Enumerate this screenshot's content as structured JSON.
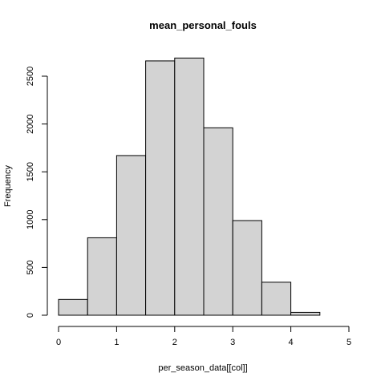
{
  "chart_data": {
    "type": "bar",
    "title": "mean_personal_fouls",
    "xlabel": "per_season_data[[col]]",
    "ylabel": "Frequency",
    "bins": [
      {
        "start": 0.0,
        "end": 0.5,
        "value": 165
      },
      {
        "start": 0.5,
        "end": 1.0,
        "value": 810
      },
      {
        "start": 1.0,
        "end": 1.5,
        "value": 1670
      },
      {
        "start": 1.5,
        "end": 2.0,
        "value": 2660
      },
      {
        "start": 2.0,
        "end": 2.5,
        "value": 2690
      },
      {
        "start": 2.5,
        "end": 3.0,
        "value": 1960
      },
      {
        "start": 3.0,
        "end": 3.5,
        "value": 990
      },
      {
        "start": 3.5,
        "end": 4.0,
        "value": 345
      },
      {
        "start": 4.0,
        "end": 4.5,
        "value": 30
      },
      {
        "start": 4.5,
        "end": 5.0,
        "value": 0
      }
    ],
    "xlim": [
      0,
      5
    ],
    "ylim": [
      0,
      2700
    ],
    "xticks": [
      "0",
      "1",
      "2",
      "3",
      "4",
      "5"
    ],
    "yticks": [
      "0",
      "500",
      "1000",
      "1500",
      "2000",
      "2500"
    ],
    "grid": false,
    "bar_color": "#d3d3d3"
  }
}
